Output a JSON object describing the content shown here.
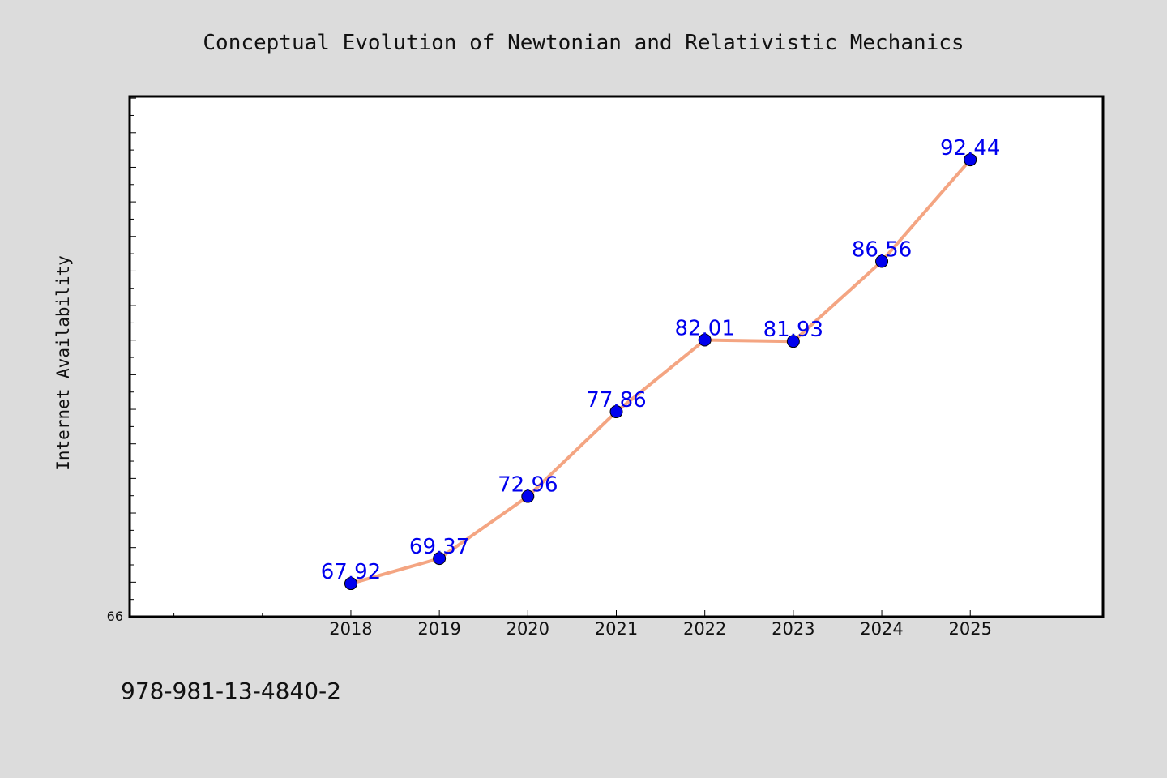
{
  "chart_data": {
    "type": "line",
    "title": "Conceptual Evolution of Newtonian and Relativistic Mechanics",
    "ylabel": "Internet Availability",
    "xlabel": "",
    "x": [
      "2018",
      "2019",
      "2020",
      "2021",
      "2022",
      "2023",
      "2024",
      "2025"
    ],
    "series": [
      {
        "values": [
          67.92,
          69.37,
          72.96,
          77.86,
          82.01,
          81.93,
          86.56,
          92.44
        ]
      }
    ],
    "y_min_label": "66",
    "ylim": [
      66,
      96.1
    ],
    "xlim": [
      2015.5,
      2026.5
    ],
    "grid": false,
    "line_color": "#f4a582",
    "marker_color": "#0000ee",
    "label_color": "#0000ee"
  },
  "footer": {
    "isbn": "978-981-13-4840-2"
  }
}
